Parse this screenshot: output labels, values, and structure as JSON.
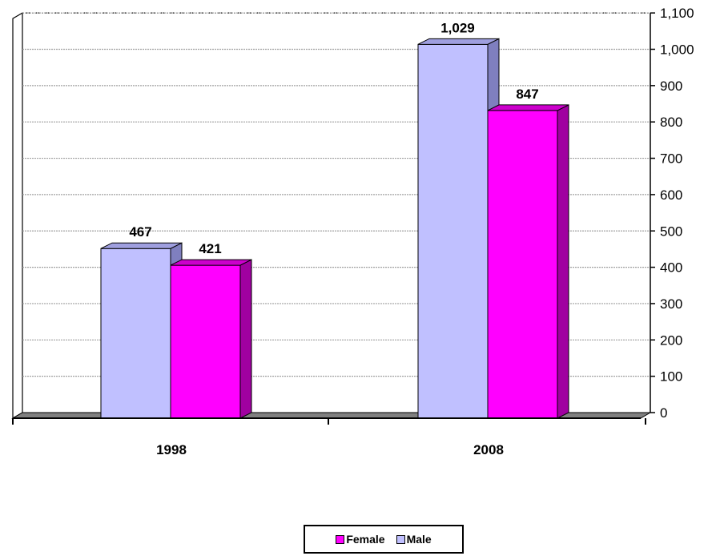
{
  "chart_data": {
    "type": "bar",
    "categories": [
      "1998",
      "2008"
    ],
    "series": [
      {
        "name": "Male",
        "values": [
          467,
          1029
        ],
        "color": "#c0c0ff",
        "side_color": "#7f7fbf",
        "top_color": "#9f9fdf"
      },
      {
        "name": "Female",
        "values": [
          421,
          847
        ],
        "color": "#ff00ff",
        "side_color": "#a000a0",
        "top_color": "#cc00cc"
      }
    ],
    "data_labels": [
      [
        "467",
        "1,029"
      ],
      [
        "421",
        "847"
      ]
    ],
    "y_ticks": [
      0,
      100,
      200,
      300,
      400,
      500,
      600,
      700,
      800,
      900,
      1000,
      1100
    ],
    "y_tick_labels": [
      "0",
      "100",
      "200",
      "300",
      "400",
      "500",
      "600",
      "700",
      "800",
      "900",
      "1,000",
      "1,100"
    ],
    "ylim": [
      0,
      1100
    ],
    "y_axis_position": "right",
    "grid": true,
    "legend": {
      "position": "bottom",
      "order": [
        "Female",
        "Male"
      ]
    },
    "title": "",
    "xlabel": "",
    "ylabel": ""
  }
}
